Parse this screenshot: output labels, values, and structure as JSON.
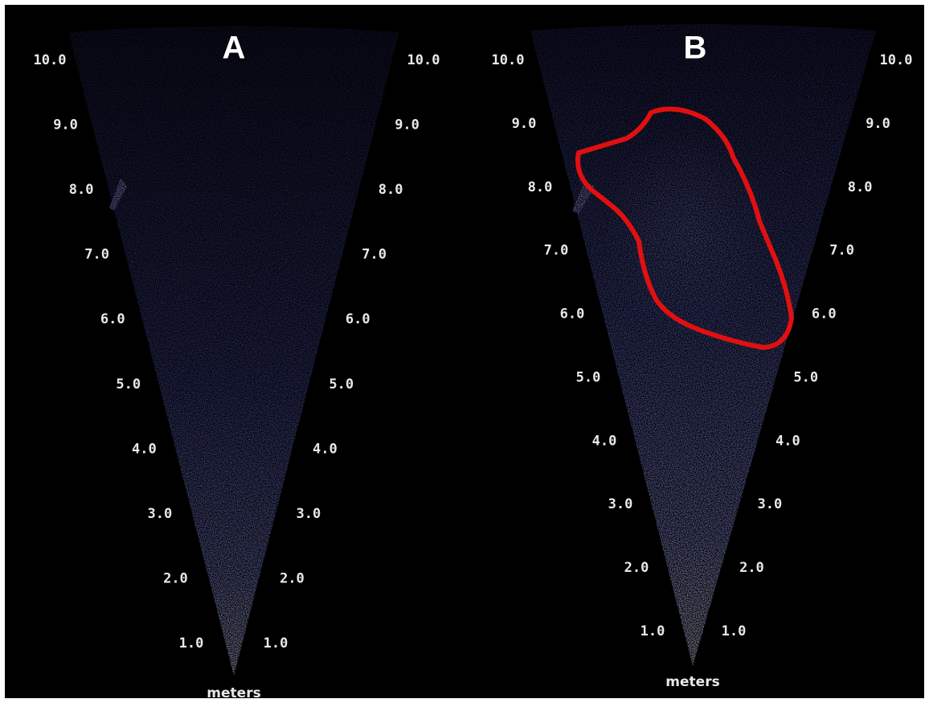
{
  "panels": [
    {
      "title": "A",
      "range_labels": [
        "1.0",
        "2.0",
        "3.0",
        "4.0",
        "5.0",
        "6.0",
        "7.0",
        "8.0",
        "9.0",
        "10.0"
      ],
      "unit": "meters"
    },
    {
      "title": "B",
      "range_labels": [
        "1.0",
        "2.0",
        "3.0",
        "4.0",
        "5.0",
        "6.0",
        "7.0",
        "8.0",
        "9.0",
        "10.0"
      ],
      "unit": "meters"
    }
  ]
}
